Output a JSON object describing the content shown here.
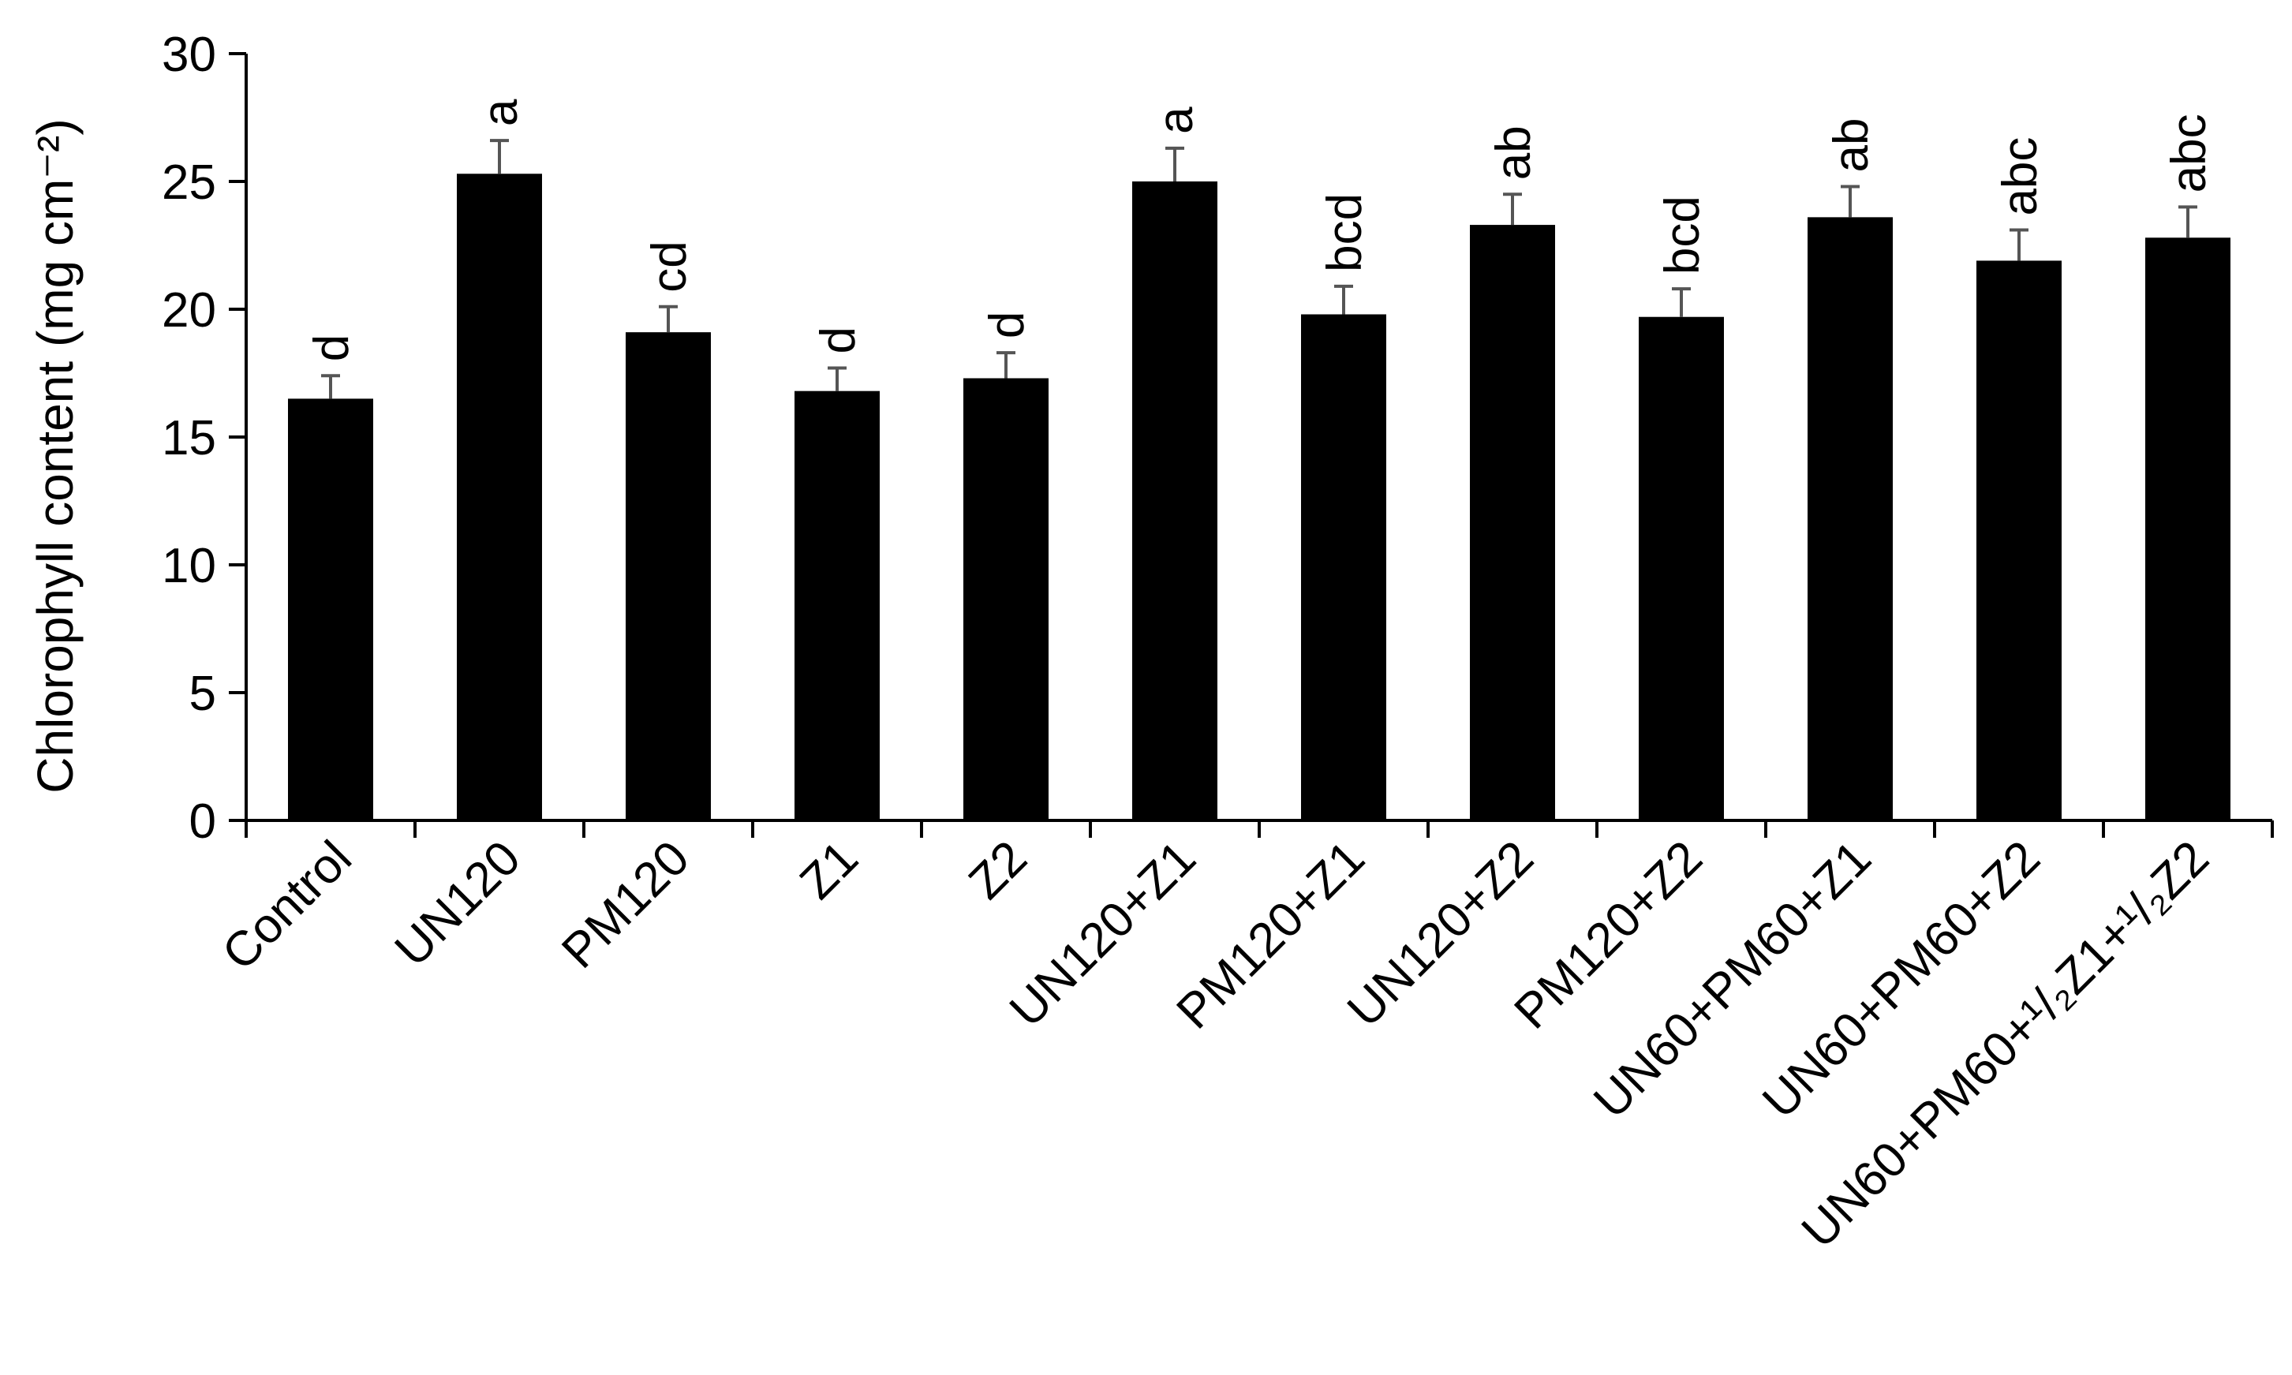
{
  "chart_data": {
    "type": "bar",
    "title": "",
    "xlabel": "",
    "ylabel": "Chlorophyll content (mg cm⁻²)",
    "ylim": [
      0,
      30
    ],
    "yticks": [
      "0",
      "5",
      "10",
      "15",
      "20",
      "25",
      "30"
    ],
    "grid": false,
    "legend": "none",
    "bar_color": "#000000",
    "error_bar_color": "#555555",
    "categories": [
      "Control",
      "UN120",
      "PM120",
      "Z1",
      "Z2",
      "UN120+Z1",
      "PM120+Z1",
      "UN120+Z2",
      "PM120+Z2",
      "UN60+PM60+Z1",
      "UN60+PM60+Z2",
      "UN60+PM60+¹/₂Z1+¹/₂Z2"
    ],
    "values": [
      16.5,
      25.3,
      19.1,
      16.8,
      17.3,
      25.0,
      19.8,
      23.3,
      19.7,
      23.6,
      21.9,
      22.8
    ],
    "errors": [
      0.9,
      1.3,
      1.0,
      0.9,
      1.0,
      1.3,
      1.1,
      1.2,
      1.1,
      1.2,
      1.2,
      1.2
    ],
    "significance": [
      "d",
      "a",
      "cd",
      "d",
      "d",
      "a",
      "bcd",
      "ab",
      "bcd",
      "ab",
      "abc",
      "abc"
    ]
  }
}
